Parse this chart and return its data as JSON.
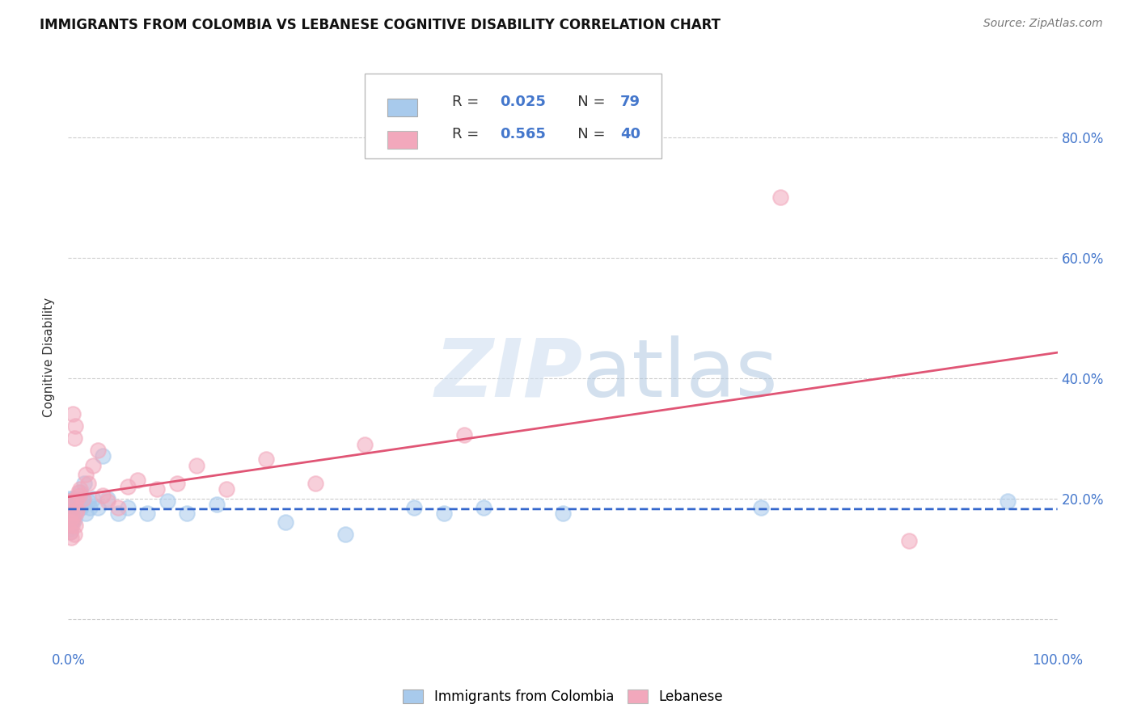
{
  "title": "IMMIGRANTS FROM COLOMBIA VS LEBANESE COGNITIVE DISABILITY CORRELATION CHART",
  "source": "Source: ZipAtlas.com",
  "ylabel": "Cognitive Disability",
  "xlim": [
    0,
    1.0
  ],
  "ylim": [
    -0.05,
    0.92
  ],
  "ytick_vals": [
    0.0,
    0.2,
    0.4,
    0.6,
    0.8
  ],
  "xtick_vals": [
    0.0,
    0.2,
    0.4,
    0.6,
    0.8,
    1.0
  ],
  "colombia_R": 0.025,
  "colombia_N": 79,
  "lebanese_R": 0.565,
  "lebanese_N": 40,
  "colombia_color": "#A8CAEC",
  "lebanese_color": "#F2A8BC",
  "colombia_line_color": "#3366CC",
  "lebanese_line_color": "#E05575",
  "tick_color": "#4477CC",
  "background_color": "#FFFFFF",
  "grid_color": "#CCCCCC",
  "colombia_x": [
    0.001,
    0.001,
    0.001,
    0.001,
    0.001,
    0.001,
    0.001,
    0.001,
    0.001,
    0.001,
    0.002,
    0.002,
    0.002,
    0.002,
    0.002,
    0.002,
    0.002,
    0.002,
    0.002,
    0.002,
    0.003,
    0.003,
    0.003,
    0.003,
    0.003,
    0.003,
    0.003,
    0.003,
    0.004,
    0.004,
    0.004,
    0.004,
    0.004,
    0.004,
    0.005,
    0.005,
    0.005,
    0.005,
    0.005,
    0.005,
    0.006,
    0.006,
    0.006,
    0.006,
    0.007,
    0.007,
    0.007,
    0.007,
    0.008,
    0.008,
    0.009,
    0.009,
    0.01,
    0.011,
    0.012,
    0.013,
    0.015,
    0.016,
    0.018,
    0.02,
    0.022,
    0.025,
    0.03,
    0.035,
    0.04,
    0.05,
    0.06,
    0.08,
    0.1,
    0.12,
    0.15,
    0.22,
    0.28,
    0.35,
    0.38,
    0.42,
    0.5,
    0.7,
    0.95
  ],
  "colombia_y": [
    0.195,
    0.185,
    0.175,
    0.19,
    0.2,
    0.18,
    0.17,
    0.165,
    0.16,
    0.155,
    0.195,
    0.185,
    0.18,
    0.175,
    0.17,
    0.165,
    0.16,
    0.155,
    0.15,
    0.145,
    0.195,
    0.19,
    0.185,
    0.18,
    0.175,
    0.17,
    0.165,
    0.16,
    0.195,
    0.19,
    0.185,
    0.18,
    0.175,
    0.165,
    0.2,
    0.195,
    0.185,
    0.18,
    0.175,
    0.165,
    0.195,
    0.185,
    0.175,
    0.165,
    0.2,
    0.195,
    0.185,
    0.175,
    0.195,
    0.185,
    0.19,
    0.18,
    0.195,
    0.185,
    0.21,
    0.185,
    0.195,
    0.225,
    0.175,
    0.195,
    0.185,
    0.2,
    0.185,
    0.27,
    0.2,
    0.175,
    0.185,
    0.175,
    0.195,
    0.175,
    0.19,
    0.16,
    0.14,
    0.185,
    0.175,
    0.185,
    0.175,
    0.185,
    0.195
  ],
  "lebanese_x": [
    0.001,
    0.001,
    0.002,
    0.002,
    0.003,
    0.003,
    0.004,
    0.004,
    0.005,
    0.005,
    0.006,
    0.006,
    0.007,
    0.007,
    0.008,
    0.008,
    0.009,
    0.01,
    0.011,
    0.012,
    0.015,
    0.018,
    0.02,
    0.025,
    0.03,
    0.035,
    0.04,
    0.05,
    0.06,
    0.07,
    0.09,
    0.11,
    0.13,
    0.16,
    0.2,
    0.25,
    0.3,
    0.4,
    0.72,
    0.85
  ],
  "lebanese_y": [
    0.195,
    0.16,
    0.175,
    0.145,
    0.195,
    0.135,
    0.16,
    0.155,
    0.34,
    0.17,
    0.3,
    0.14,
    0.32,
    0.155,
    0.195,
    0.175,
    0.18,
    0.21,
    0.205,
    0.215,
    0.2,
    0.24,
    0.225,
    0.255,
    0.28,
    0.205,
    0.195,
    0.185,
    0.22,
    0.23,
    0.215,
    0.225,
    0.255,
    0.215,
    0.265,
    0.225,
    0.29,
    0.305,
    0.7,
    0.13
  ]
}
